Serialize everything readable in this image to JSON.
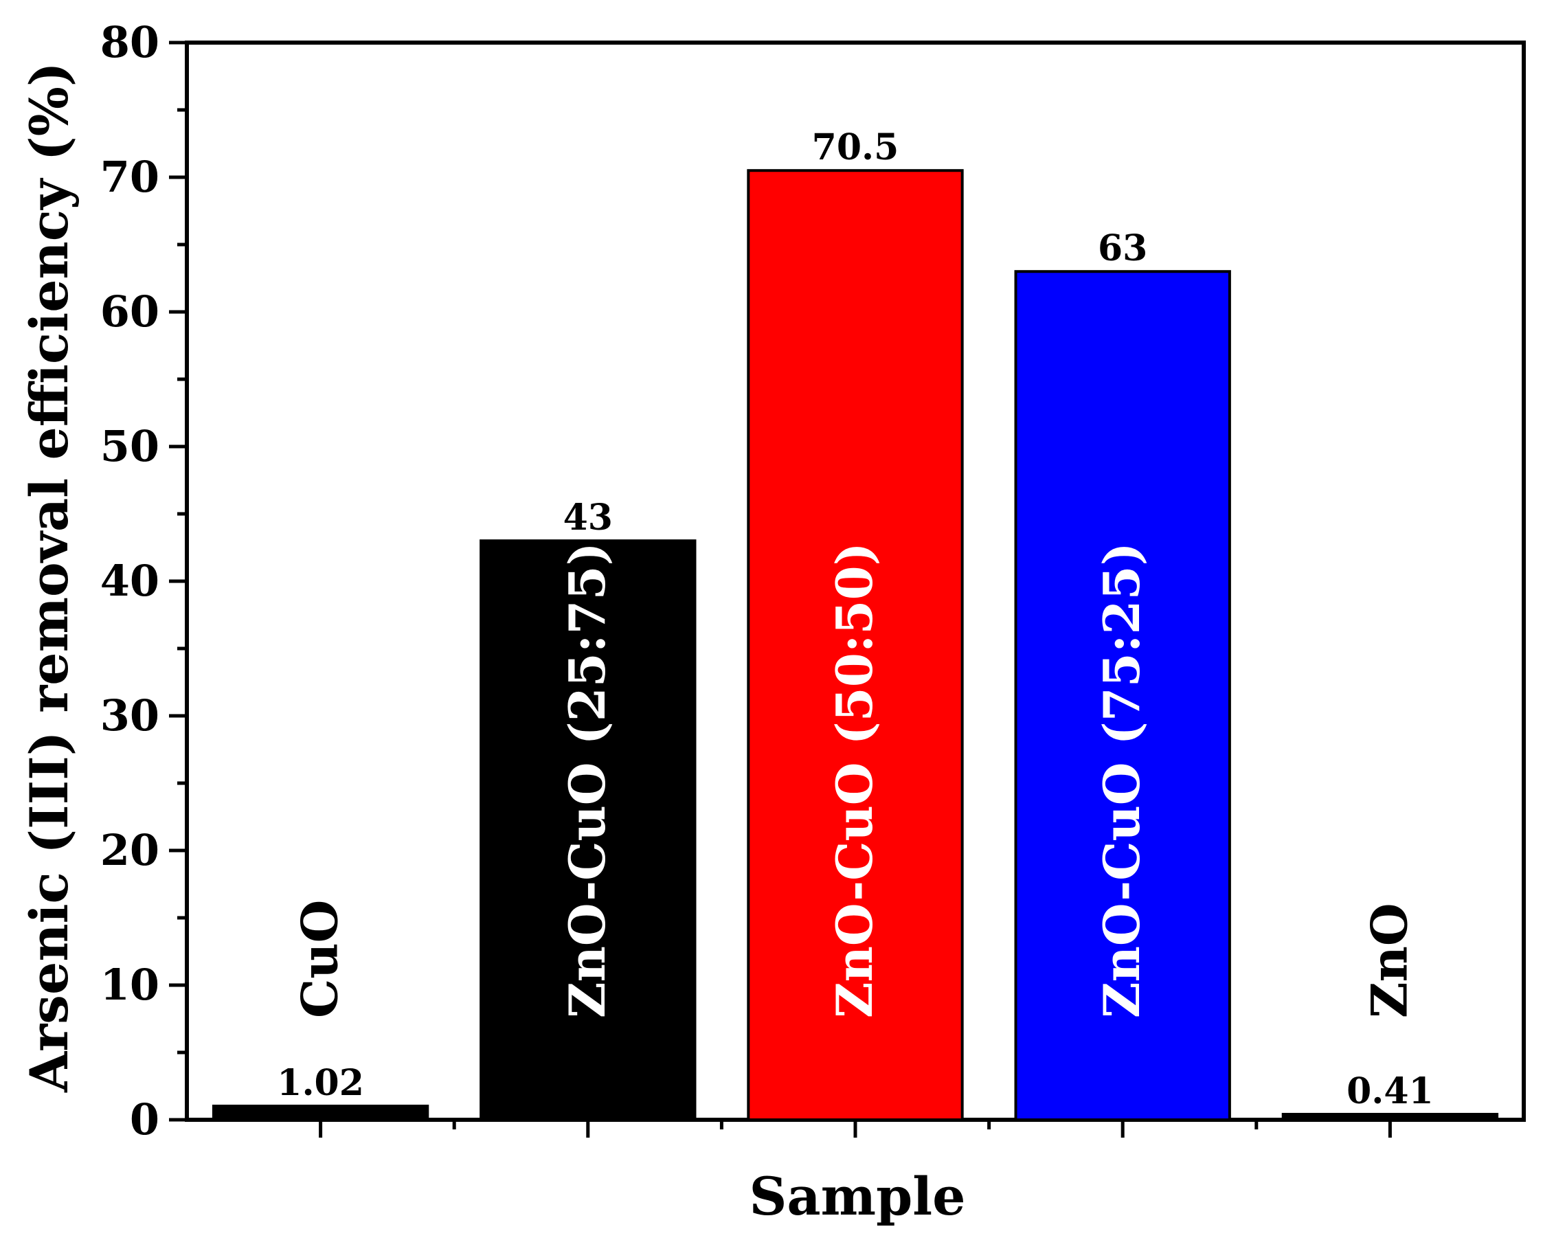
{
  "chart_data": {
    "type": "bar",
    "categories": [
      "CuO",
      "ZnO-CuO (25:75)",
      "ZnO-CuO (50:50)",
      "ZnO-CuO (75:25)",
      "ZnO"
    ],
    "values": [
      1.02,
      43,
      70.5,
      63,
      0.41
    ],
    "data_labels": [
      "1.02",
      "43",
      "70.5",
      "63",
      "0.41"
    ],
    "colors": [
      "#000000",
      "#000000",
      "#ff0000",
      "#0000ff",
      "#000000"
    ],
    "category_label_colors": [
      "#000000",
      "#ffffff",
      "#ffffff",
      "#ffffff",
      "#000000"
    ],
    "xlabel": "Sample",
    "ylabel": "Arsenic (III) removal efficiency (%)",
    "ylim": [
      0,
      80
    ],
    "yticks": [
      0,
      10,
      20,
      30,
      40,
      50,
      60,
      70,
      80
    ],
    "ytick_labels": [
      "0",
      "10",
      "20",
      "30",
      "40",
      "50",
      "60",
      "70",
      "80"
    ],
    "grid": false,
    "legend": "none"
  }
}
